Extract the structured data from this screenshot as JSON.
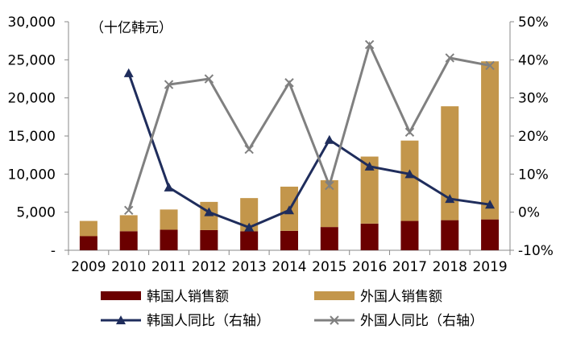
{
  "chart_data": {
    "type": "bar",
    "title": "",
    "unit_note": "（十亿韩元）",
    "xlabel": "",
    "ylabel": "",
    "categories": [
      "2009",
      "2010",
      "2011",
      "2012",
      "2013",
      "2014",
      "2015",
      "2016",
      "2017",
      "2018",
      "2019"
    ],
    "ylim_left": [
      0,
      30000
    ],
    "left_ticks": [
      "-",
      "5,000",
      "10,000",
      "15,000",
      "20,000",
      "25,000",
      "30,000"
    ],
    "ylim_right": [
      -10,
      50
    ],
    "right_ticks": [
      "-10%",
      "0%",
      "10%",
      "20%",
      "30%",
      "40%",
      "50%"
    ],
    "grid": false,
    "legend_position": "bottom",
    "series": [
      {
        "name": "韩国人销售额",
        "kind": "bar",
        "stack": "sales",
        "axis": "left",
        "color": "#6b0000",
        "values": [
          1850,
          2500,
          2700,
          2650,
          2500,
          2550,
          3050,
          3500,
          3850,
          3950,
          4050
        ]
      },
      {
        "name": "外国人销售额",
        "kind": "bar",
        "stack": "sales",
        "axis": "left",
        "color": "#c3964b",
        "values": [
          2000,
          2100,
          2650,
          3700,
          4350,
          5800,
          6150,
          8800,
          10550,
          14950,
          20750
        ]
      },
      {
        "name": "韩国人同比（右轴）",
        "kind": "line",
        "axis": "right",
        "marker": "triangle",
        "color": "#1f2d5c",
        "values": [
          null,
          36.5,
          6.5,
          0,
          -4,
          0.5,
          19,
          12,
          10,
          3.5,
          2
        ]
      },
      {
        "name": "外国人同比（右轴）",
        "kind": "line",
        "axis": "right",
        "marker": "x",
        "color": "#808080",
        "values": [
          null,
          0.5,
          33.5,
          35,
          16.5,
          34,
          7,
          44,
          21,
          40.5,
          38.5
        ]
      }
    ]
  }
}
